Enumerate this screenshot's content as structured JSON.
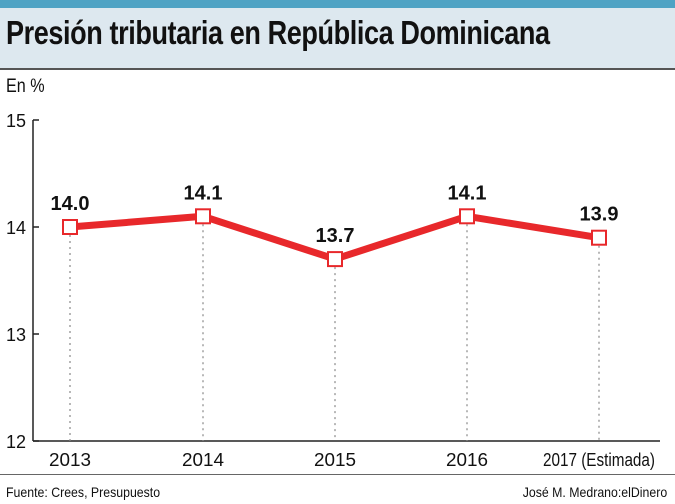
{
  "chart_data": {
    "type": "line",
    "title": "Presión tributaria en República Dominicana",
    "ylabel": "En %",
    "categories": [
      "2013",
      "2014",
      "2015",
      "2016",
      "2017 (Estimada)"
    ],
    "values": [
      14.0,
      14.1,
      13.7,
      14.1,
      13.9
    ],
    "data_labels": [
      "14.0",
      "14.1",
      "13.7",
      "14.1",
      "13.9"
    ],
    "ylim": [
      12,
      15
    ],
    "yticks": [
      "12",
      "13",
      "14",
      "15"
    ],
    "grid": false,
    "series_color": "#e8282b",
    "source": "Fuente: Crees, Presupuesto",
    "credit": "José M. Medrano:elDinero"
  }
}
